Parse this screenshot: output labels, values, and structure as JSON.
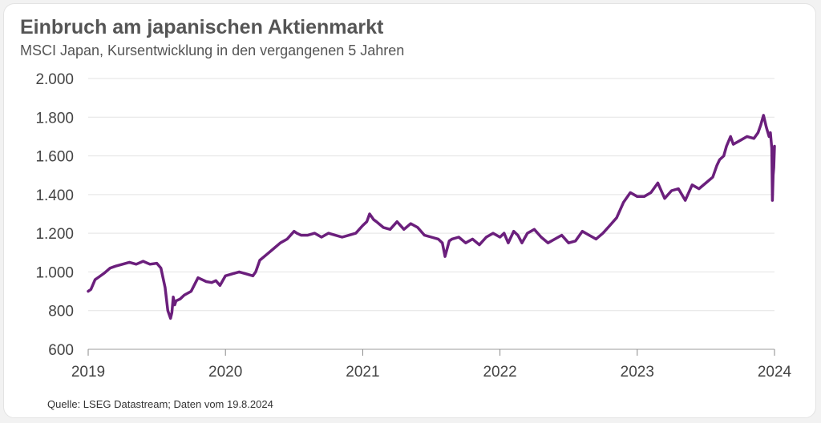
{
  "title": "Einbruch am japanischen Aktienmarkt",
  "subtitle": "MSCI Japan, Kursentwicklung in den vergangenen 5 Jahren",
  "source": "Quelle: LSEG Datastream; Daten vom 19.8.2024",
  "colors": {
    "line": "#6b1f7c",
    "grid": "#e3e3e3",
    "axis": "#bdbdbd",
    "text": "#555555"
  },
  "chart_data": {
    "type": "line",
    "title": "Einbruch am japanischen Aktienmarkt",
    "subtitle": "MSCI Japan, Kursentwicklung in den vergangenen 5 Jahren",
    "xlabel": "",
    "ylabel": "",
    "xlim": [
      2019.0,
      2024.0
    ],
    "ylim": [
      600,
      2000
    ],
    "grid": true,
    "y_ticks": [
      600,
      800,
      1000,
      1200,
      1400,
      1600,
      1800,
      2000
    ],
    "y_tick_labels": [
      "600",
      "800",
      "1.000",
      "1.200",
      "1.400",
      "1.600",
      "1.800",
      "2.000"
    ],
    "x_ticks": [
      2019,
      2020,
      2021,
      2022,
      2023,
      2024
    ],
    "x_tick_labels": [
      "2019",
      "2020",
      "2021",
      "2022",
      "2023",
      "2024"
    ],
    "series": [
      {
        "name": "MSCI Japan",
        "x": [
          2019.0,
          2019.02,
          2019.05,
          2019.08,
          2019.12,
          2019.16,
          2019.2,
          2019.25,
          2019.3,
          2019.35,
          2019.4,
          2019.45,
          2019.5,
          2019.53,
          2019.56,
          2019.58,
          2019.6,
          2019.61,
          2019.62,
          2019.63,
          2019.64,
          2019.67,
          2019.7,
          2019.75,
          2019.8,
          2019.83,
          2019.86,
          2019.9,
          2019.93,
          2019.96,
          2020.0,
          2020.05,
          2020.1,
          2020.15,
          2020.2,
          2020.22,
          2020.25,
          2020.3,
          2020.35,
          2020.4,
          2020.45,
          2020.5,
          2020.52,
          2020.55,
          2020.6,
          2020.65,
          2020.7,
          2020.75,
          2020.8,
          2020.85,
          2020.9,
          2020.95,
          2021.0,
          2021.03,
          2021.05,
          2021.08,
          2021.1,
          2021.15,
          2021.2,
          2021.25,
          2021.3,
          2021.35,
          2021.4,
          2021.45,
          2021.5,
          2021.55,
          2021.58,
          2021.6,
          2021.63,
          2021.65,
          2021.7,
          2021.75,
          2021.8,
          2021.85,
          2021.9,
          2021.95,
          2022.0,
          2022.03,
          2022.06,
          2022.1,
          2022.13,
          2022.16,
          2022.2,
          2022.25,
          2022.3,
          2022.35,
          2022.4,
          2022.45,
          2022.5,
          2022.55,
          2022.6,
          2022.65,
          2022.7,
          2022.75,
          2022.8,
          2022.85,
          2022.9,
          2022.95,
          2023.0,
          2023.05,
          2023.1,
          2023.15,
          2023.2,
          2023.25,
          2023.3,
          2023.35,
          2023.4,
          2023.45,
          2023.5,
          2023.55,
          2023.58,
          2023.6,
          2023.63,
          2023.65,
          2023.68,
          2023.7,
          2023.75,
          2023.8,
          2023.85,
          2023.88,
          2023.9,
          2023.92,
          2023.94,
          2023.96,
          2023.97,
          2023.98,
          2023.985,
          2023.99,
          2023.995,
          2024.0
        ],
        "values": [
          900,
          910,
          960,
          975,
          995,
          1020,
          1030,
          1040,
          1050,
          1040,
          1055,
          1040,
          1045,
          1020,
          920,
          800,
          760,
          790,
          870,
          830,
          850,
          860,
          880,
          900,
          970,
          960,
          950,
          945,
          955,
          930,
          980,
          990,
          1000,
          990,
          980,
          1000,
          1060,
          1090,
          1120,
          1150,
          1170,
          1210,
          1200,
          1190,
          1190,
          1200,
          1180,
          1200,
          1190,
          1180,
          1190,
          1200,
          1240,
          1260,
          1300,
          1270,
          1260,
          1230,
          1220,
          1260,
          1220,
          1250,
          1230,
          1190,
          1180,
          1170,
          1150,
          1080,
          1160,
          1170,
          1180,
          1150,
          1170,
          1140,
          1180,
          1200,
          1180,
          1200,
          1150,
          1210,
          1190,
          1150,
          1200,
          1220,
          1180,
          1150,
          1170,
          1190,
          1150,
          1160,
          1210,
          1190,
          1170,
          1200,
          1240,
          1280,
          1360,
          1410,
          1390,
          1390,
          1410,
          1460,
          1380,
          1420,
          1430,
          1370,
          1450,
          1430,
          1460,
          1490,
          1550,
          1580,
          1600,
          1650,
          1700,
          1660,
          1680,
          1700,
          1690,
          1720,
          1760,
          1810,
          1750,
          1700,
          1720,
          1640,
          1370,
          1500,
          1540,
          1650
        ]
      }
    ]
  }
}
